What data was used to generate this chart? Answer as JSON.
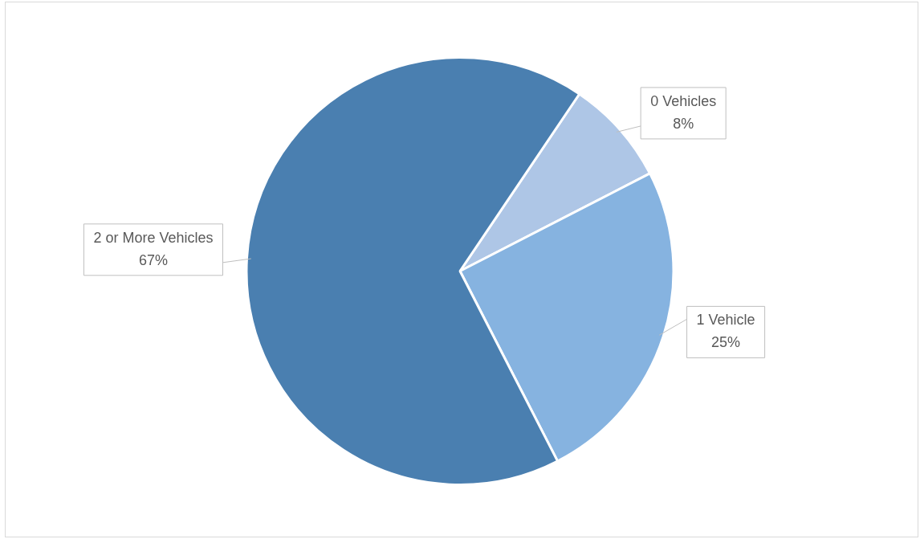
{
  "chart_data": {
    "type": "pie",
    "categories": [
      "0 Vehicles",
      "1 Vehicle",
      "2 or More Vehicles"
    ],
    "values": [
      8,
      25,
      67
    ],
    "colors": [
      "#aec6e6",
      "#86b3e0",
      "#4a7fb0"
    ],
    "value_labels": [
      "8%",
      "25%",
      "67%"
    ],
    "legend": false
  }
}
